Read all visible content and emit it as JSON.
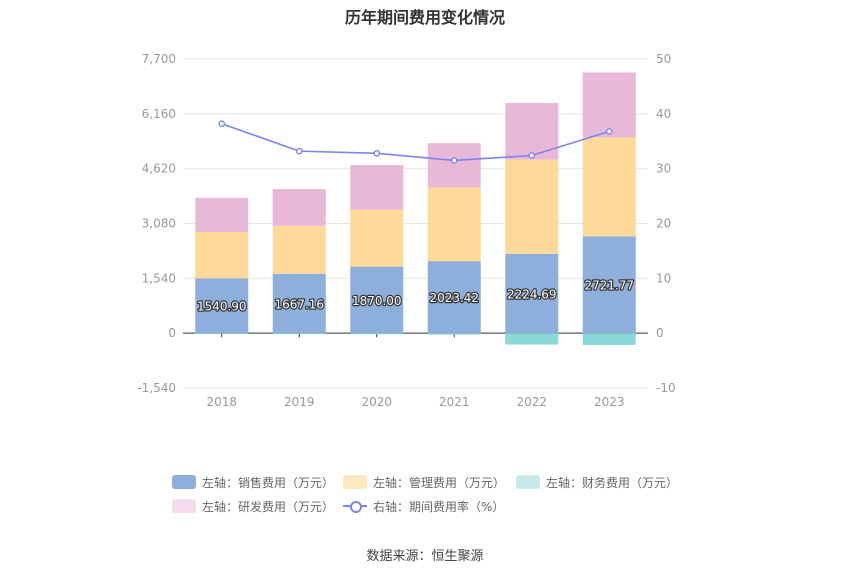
{
  "chart_data": {
    "type": "bar",
    "title": "历年期间费用变化情况",
    "categories": [
      "2018",
      "2019",
      "2020",
      "2021",
      "2022",
      "2023"
    ],
    "left_axis": {
      "ylim": [
        -1540,
        7700
      ],
      "ticks": [
        "7,700",
        "6,160",
        "4,620",
        "3,080",
        "1,540",
        "0",
        "-1,540"
      ],
      "tick_values": [
        7700,
        6160,
        4620,
        3080,
        1540,
        0,
        -1540
      ]
    },
    "right_axis": {
      "ylim": [
        -10,
        50
      ],
      "ticks": [
        "50",
        "40",
        "30",
        "20",
        "10",
        "0",
        "-10"
      ],
      "tick_values": [
        50,
        40,
        30,
        20,
        10,
        0,
        -10
      ]
    },
    "series": [
      {
        "name": "左轴：销售费用（万元）",
        "kind": "bar",
        "color": "#8eaedb",
        "values": [
          1540.9,
          1667.16,
          1870.0,
          2023.42,
          2224.69,
          2721.77
        ],
        "labels": [
          "1540.90",
          "1667.16",
          "1870.00",
          "2023.42",
          "2224.69",
          "2721.77"
        ]
      },
      {
        "name": "左轴：管理费用（万元）",
        "kind": "bar",
        "color": "#ffd999",
        "values": [
          1300,
          1350,
          1600,
          2070,
          2650,
          2780
        ]
      },
      {
        "name": "左轴：财务费用（万元）",
        "kind": "bar",
        "color": "#8bd8d8",
        "values": [
          -10,
          -20,
          -30,
          -40,
          -320,
          -330
        ]
      },
      {
        "name": "左轴：研发费用（万元）",
        "kind": "bar",
        "color": "#e8b8d8",
        "values": [
          960,
          1030,
          1250,
          1240,
          1590,
          1820
        ]
      },
      {
        "name": "右轴：期间费用率（%）",
        "kind": "line",
        "axis": "right",
        "color": "#7b84ea",
        "values": [
          38.2,
          33.2,
          32.8,
          31.5,
          32.4,
          36.8
        ]
      }
    ],
    "legend_position": "bottom",
    "grid": true
  },
  "source": "数据来源：恒生聚源"
}
